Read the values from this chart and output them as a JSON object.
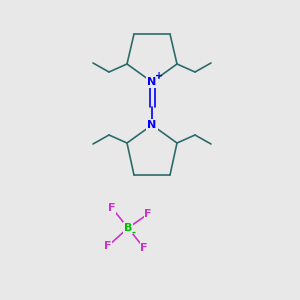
{
  "background_color": "#e8e8e8",
  "bond_color": "#2d6b6b",
  "N_color": "#0000ff",
  "B_color": "#00bb00",
  "F_color": "#cc33cc",
  "figsize": [
    3.0,
    3.0
  ],
  "dpi": 100,
  "xlim": [
    0,
    300
  ],
  "ylim": [
    0,
    300
  ]
}
